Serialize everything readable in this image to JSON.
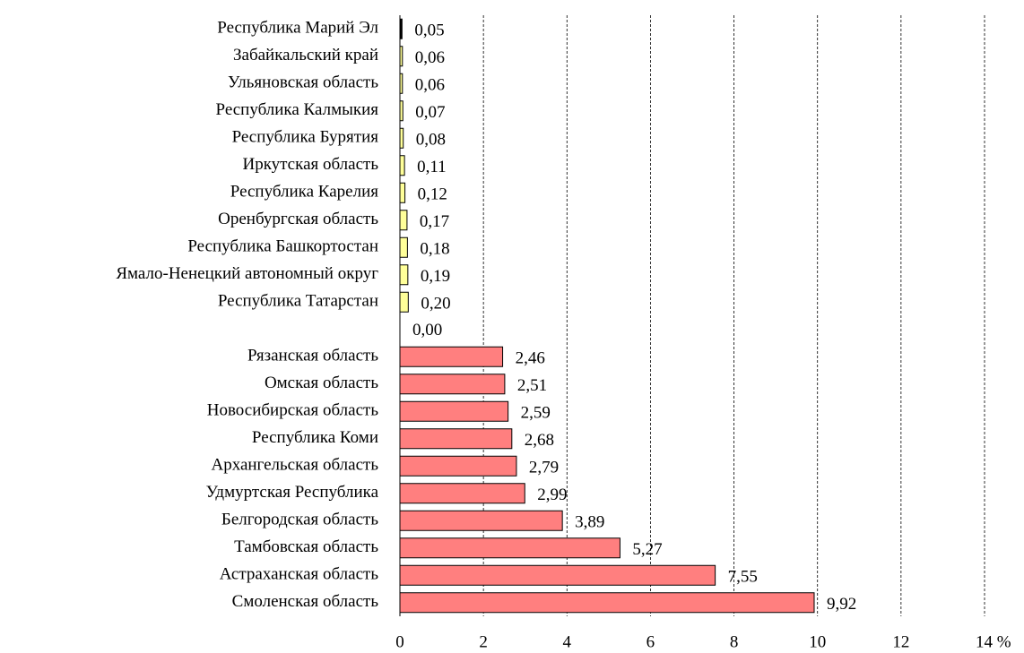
{
  "chart_data": {
    "type": "bar",
    "orientation": "horizontal",
    "categories": [
      "Республика Марий Эл",
      "Забайкальский край",
      "Ульяновская область",
      "Республика Калмыкия",
      "Республика Бурятия",
      "Иркутская область",
      "Республика Карелия",
      "Оренбургская область",
      "Республика Башкортостан",
      "Ямало-Ненецкий автономный округ",
      "Республика Татарстан",
      null,
      "Рязанская область",
      "Омская область",
      "Новосибирская область",
      "Республика Коми",
      "Архангельская область",
      "Удмуртская Республика",
      "Белгородская область",
      "Тамбовская область",
      "Астраханская область",
      "Смоленская область"
    ],
    "values": [
      0.05,
      0.06,
      0.06,
      0.07,
      0.08,
      0.11,
      0.12,
      0.17,
      0.18,
      0.19,
      0.2,
      0.0,
      2.46,
      2.51,
      2.59,
      2.68,
      2.79,
      2.99,
      3.89,
      5.27,
      7.55,
      9.92
    ],
    "value_labels": [
      "0,05",
      "0,06",
      "0,06",
      "0,07",
      "0,08",
      "0,11",
      "0,12",
      "0,17",
      "0,18",
      "0,19",
      "0,20",
      "0,00",
      "2,46",
      "2,51",
      "2,59",
      "2,68",
      "2,79",
      "2,99",
      "3,89",
      "5,27",
      "7,55",
      "9,92"
    ],
    "colors": [
      "#000000",
      "#ffff99",
      "#ffff99",
      "#ffff99",
      "#ffff99",
      "#ffff99",
      "#ffff99",
      "#ffff99",
      "#ffff99",
      "#ffff99",
      "#ffff99",
      "#ffff99",
      "#ff7f7f",
      "#ff7f7f",
      "#ff7f7f",
      "#ff7f7f",
      "#ff7f7f",
      "#ff7f7f",
      "#ff7f7f",
      "#ff7f7f",
      "#ff7f7f",
      "#ff7f7f"
    ],
    "xlim": [
      0,
      14
    ],
    "xticks": [
      0,
      2,
      4,
      6,
      8,
      10,
      12,
      {
        "value": 14,
        "label": "14 %"
      }
    ],
    "grid": true
  }
}
